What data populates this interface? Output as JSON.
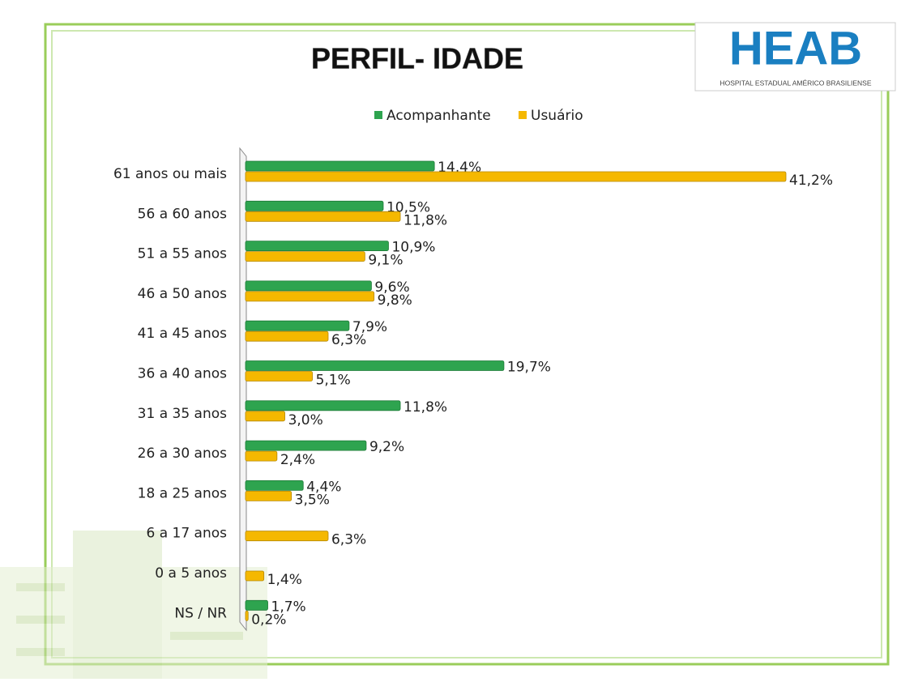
{
  "chart_data": {
    "type": "hbar",
    "title": "PERFIL- IDADE",
    "categories": [
      "61 anos ou mais",
      "56 a 60 anos",
      "51 a 55 anos",
      "46 a 50 anos",
      "41 a 45 anos",
      "36 a 40 anos",
      "31 a 35 anos",
      "26 a 30 anos",
      "18 a 25 anos",
      "6 a 17 anos",
      "0 a 5 anos",
      "NS / NR"
    ],
    "series": [
      {
        "name": "Acompanhante",
        "color": "#2ea44f",
        "values": [
          14.4,
          10.5,
          10.9,
          9.6,
          7.9,
          19.7,
          11.8,
          9.2,
          4.4,
          null,
          null,
          1.7
        ],
        "value_labels": [
          "14,4%",
          "10,5%",
          "10,9%",
          "9,6%",
          "7,9%",
          "19,7%",
          "11,8%",
          "9,2%",
          "4,4%",
          null,
          null,
          "1,7%"
        ]
      },
      {
        "name": "Usuário",
        "color": "#f5b800",
        "values": [
          41.2,
          11.8,
          9.1,
          9.8,
          6.3,
          5.1,
          3.0,
          2.4,
          3.5,
          6.3,
          1.4,
          0.2
        ],
        "value_labels": [
          "41,2%",
          "11,8%",
          "9,1%",
          "9,8%",
          "6,3%",
          "5,1%",
          "3,0%",
          "2,4%",
          "3,5%",
          "6,3%",
          "1,4%",
          "0,2%"
        ]
      }
    ],
    "legend": "top"
  },
  "logo": {
    "text": "HEAB",
    "subtitle": "HOSPITAL ESTADUAL AMÉRICO BRASILIENSE"
  }
}
